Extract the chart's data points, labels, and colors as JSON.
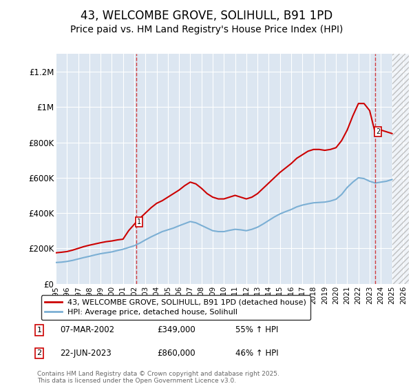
{
  "title": "43, WELCOMBE GROVE, SOLIHULL, B91 1PD",
  "subtitle": "Price paid vs. HM Land Registry's House Price Index (HPI)",
  "title_fontsize": 12,
  "subtitle_fontsize": 10,
  "ylim": [
    0,
    1300000
  ],
  "xlim_start": 1995.0,
  "xlim_end": 2026.5,
  "yticks": [
    0,
    200000,
    400000,
    600000,
    800000,
    1000000,
    1200000
  ],
  "ytick_labels": [
    "£0",
    "£200K",
    "£400K",
    "£600K",
    "£800K",
    "£1M",
    "£1.2M"
  ],
  "xticks": [
    1995,
    1996,
    1997,
    1998,
    1999,
    2000,
    2001,
    2002,
    2003,
    2004,
    2005,
    2006,
    2007,
    2008,
    2009,
    2010,
    2011,
    2012,
    2013,
    2014,
    2015,
    2016,
    2017,
    2018,
    2019,
    2020,
    2021,
    2022,
    2023,
    2024,
    2025,
    2026
  ],
  "background_color": "#ffffff",
  "plot_bg_color": "#dce6f1",
  "grid_color": "#ffffff",
  "hatch_color": "#aaaaaa",
  "hatch_start": 2025.0,
  "red_line_color": "#cc0000",
  "blue_line_color": "#7bafd4",
  "sale1_x": 2002.18,
  "sale1_y": 349000,
  "sale1_label": "1",
  "sale1_date": "07-MAR-2002",
  "sale1_price": "£349,000",
  "sale1_hpi": "55% ↑ HPI",
  "sale2_x": 2023.47,
  "sale2_y": 860000,
  "sale2_label": "2",
  "sale2_date": "22-JUN-2023",
  "sale2_price": "£860,000",
  "sale2_hpi": "46% ↑ HPI",
  "legend_line1": "43, WELCOMBE GROVE, SOLIHULL, B91 1PD (detached house)",
  "legend_line2": "HPI: Average price, detached house, Solihull",
  "footer": "Contains HM Land Registry data © Crown copyright and database right 2025.\nThis data is licensed under the Open Government Licence v3.0.",
  "red_x": [
    1995.0,
    1995.5,
    1996.0,
    1996.5,
    1997.0,
    1997.5,
    1998.0,
    1998.5,
    1999.0,
    1999.5,
    2000.0,
    2000.5,
    2001.0,
    2001.5,
    2002.18,
    2002.5,
    2003.0,
    2003.5,
    2004.0,
    2004.5,
    2005.0,
    2005.5,
    2006.0,
    2006.5,
    2007.0,
    2007.5,
    2008.0,
    2008.5,
    2009.0,
    2009.5,
    2010.0,
    2010.5,
    2011.0,
    2011.5,
    2012.0,
    2012.5,
    2013.0,
    2013.5,
    2014.0,
    2014.5,
    2015.0,
    2015.5,
    2016.0,
    2016.5,
    2017.0,
    2017.5,
    2018.0,
    2018.5,
    2019.0,
    2019.5,
    2020.0,
    2020.5,
    2021.0,
    2021.5,
    2022.0,
    2022.5,
    2023.0,
    2023.47,
    2024.0,
    2024.5,
    2025.0
  ],
  "red_y": [
    175000,
    178000,
    182000,
    190000,
    200000,
    210000,
    218000,
    225000,
    232000,
    238000,
    242000,
    248000,
    252000,
    300000,
    349000,
    370000,
    400000,
    430000,
    455000,
    470000,
    490000,
    510000,
    530000,
    555000,
    575000,
    565000,
    540000,
    510000,
    490000,
    480000,
    480000,
    490000,
    500000,
    490000,
    480000,
    490000,
    510000,
    540000,
    570000,
    600000,
    630000,
    655000,
    680000,
    710000,
    730000,
    750000,
    760000,
    760000,
    755000,
    760000,
    770000,
    810000,
    870000,
    950000,
    1020000,
    1020000,
    980000,
    860000,
    870000,
    860000,
    850000
  ],
  "blue_x": [
    1995.0,
    1995.5,
    1996.0,
    1996.5,
    1997.0,
    1997.5,
    1998.0,
    1998.5,
    1999.0,
    1999.5,
    2000.0,
    2000.5,
    2001.0,
    2001.5,
    2002.0,
    2002.5,
    2003.0,
    2003.5,
    2004.0,
    2004.5,
    2005.0,
    2005.5,
    2006.0,
    2006.5,
    2007.0,
    2007.5,
    2008.0,
    2008.5,
    2009.0,
    2009.5,
    2010.0,
    2010.5,
    2011.0,
    2011.5,
    2012.0,
    2012.5,
    2013.0,
    2013.5,
    2014.0,
    2014.5,
    2015.0,
    2015.5,
    2016.0,
    2016.5,
    2017.0,
    2017.5,
    2018.0,
    2018.5,
    2019.0,
    2019.5,
    2020.0,
    2020.5,
    2021.0,
    2021.5,
    2022.0,
    2022.5,
    2023.0,
    2023.5,
    2024.0,
    2024.5,
    2025.0
  ],
  "blue_y": [
    120000,
    122000,
    126000,
    132000,
    140000,
    148000,
    155000,
    163000,
    170000,
    175000,
    180000,
    188000,
    195000,
    205000,
    215000,
    230000,
    248000,
    265000,
    280000,
    295000,
    305000,
    315000,
    328000,
    340000,
    352000,
    345000,
    330000,
    315000,
    300000,
    295000,
    295000,
    302000,
    308000,
    305000,
    300000,
    308000,
    320000,
    338000,
    358000,
    378000,
    395000,
    408000,
    420000,
    435000,
    445000,
    452000,
    458000,
    460000,
    462000,
    468000,
    478000,
    505000,
    545000,
    575000,
    600000,
    595000,
    580000,
    570000,
    575000,
    580000,
    590000
  ]
}
